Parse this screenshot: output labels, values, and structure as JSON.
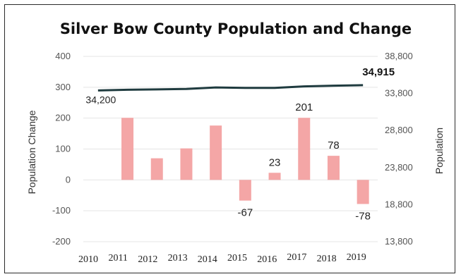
{
  "chart_data": {
    "type": "bar",
    "title": "Silver Bow County Population and Change",
    "categories": [
      "2010",
      "2011",
      "2012",
      "2013",
      "2014",
      "2015",
      "2016",
      "2017",
      "2018",
      "2019"
    ],
    "y_left": {
      "label": "Population Change",
      "ticks": [
        "400",
        "300",
        "200",
        "100",
        "0",
        "-100",
        "-200"
      ],
      "range": [
        -200,
        400
      ]
    },
    "y_right": {
      "label": "Population",
      "ticks": [
        "38,800",
        "33,800",
        "28,800",
        "23,800",
        "18,800",
        "13,800"
      ],
      "range": [
        13800,
        38800
      ]
    },
    "series": [
      {
        "type": "bar",
        "axis": "left",
        "values": [
          null,
          201,
          70,
          102,
          176,
          -67,
          23,
          201,
          78,
          -78
        ],
        "labels": [
          "",
          "",
          "",
          "",
          "",
          "-67",
          "23",
          "201",
          "78",
          "-78"
        ],
        "color": "#f4a6a6"
      },
      {
        "type": "line",
        "axis": "right",
        "values": [
          34200,
          34300,
          34350,
          34400,
          34600,
          34550,
          34550,
          34750,
          34840,
          34915
        ],
        "labels": [
          "34,200",
          "",
          "",
          "",
          "",
          "",
          "",
          "",
          "",
          "34,915"
        ],
        "color": "#1f3b3f"
      }
    ],
    "grid": true,
    "legend": "none"
  }
}
